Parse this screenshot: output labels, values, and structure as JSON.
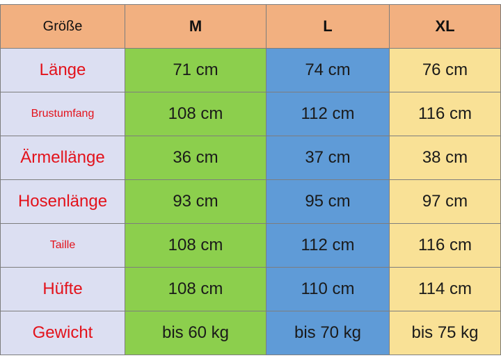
{
  "header": {
    "size_label": "Größe",
    "columns": [
      "M",
      "L",
      "XL"
    ]
  },
  "rows": [
    {
      "label": "Länge",
      "values": [
        "71 cm",
        "74 cm",
        "76 cm"
      ]
    },
    {
      "label": "Brustumfang",
      "values": [
        "108 cm",
        "112 cm",
        "116 cm"
      ]
    },
    {
      "label": "Ärmellänge",
      "values": [
        "36 cm",
        "37 cm",
        "38 cm"
      ]
    },
    {
      "label": "Hosenlänge",
      "values": [
        "93 cm",
        "95 cm",
        "97 cm"
      ]
    },
    {
      "label": "Taille",
      "values": [
        "108 cm",
        "112 cm",
        "116 cm"
      ]
    },
    {
      "label": "Hüfte",
      "values": [
        "108 cm",
        "110 cm",
        "114 cm"
      ]
    },
    {
      "label": "Gewicht",
      "values": [
        "bis 60 kg",
        "bis 70 kg",
        "bis 75 kg"
      ]
    }
  ],
  "colors": {
    "header": "#f2b080",
    "label_bg": "#dcdff2",
    "label_text": "#e3121b",
    "M": "#8ccf4d",
    "L": "#5f9bd7",
    "XL": "#f9e196"
  }
}
